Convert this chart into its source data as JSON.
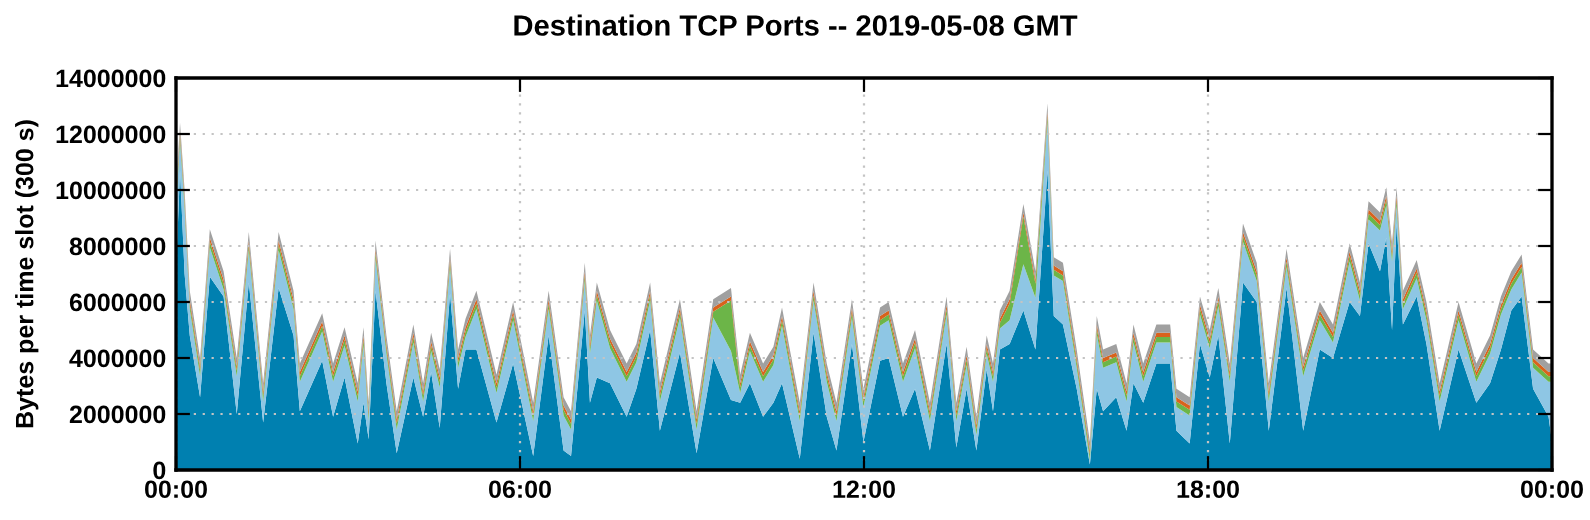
{
  "chart_data": {
    "type": "area",
    "stacked": true,
    "title": "Destination TCP Ports -- 2019-05-08 GMT",
    "ylabel": "Bytes per time slot (300 s)",
    "x": [
      0,
      0.07,
      0.15,
      0.24,
      0.42,
      0.59,
      0.83,
      1.06,
      1.27,
      1.52,
      1.79,
      2.05,
      2.16,
      2.55,
      2.74,
      2.94,
      3.17,
      3.27,
      3.36,
      3.48,
      3.67,
      3.85,
      4.14,
      4.31,
      4.45,
      4.6,
      4.78,
      4.92,
      5.05,
      5.24,
      5.59,
      5.88,
      6.23,
      6.5,
      6.76,
      6.89,
      7.13,
      7.22,
      7.34,
      7.57,
      7.86,
      8.03,
      8.27,
      8.44,
      8.79,
      9.08,
      9.37,
      9.68,
      9.84,
      10.01,
      10.24,
      10.42,
      10.57,
      10.88,
      11.12,
      11.35,
      11.52,
      11.79,
      11.99,
      12.28,
      12.43,
      12.68,
      12.89,
      13.15,
      13.44,
      13.61,
      13.79,
      13.96,
      14.14,
      14.25,
      14.37,
      14.54,
      14.78,
      14.99,
      15.2,
      15.31,
      15.47,
      15.71,
      15.94,
      16.06,
      16.17,
      16.4,
      16.58,
      16.7,
      16.87,
      17.1,
      17.34,
      17.45,
      17.68,
      17.86,
      18.03,
      18.18,
      18.38,
      18.61,
      18.85,
      19.06,
      19.37,
      19.66,
      19.95,
      20.18,
      20.47,
      20.65,
      20.8,
      21.0,
      21.11,
      21.21,
      21.29,
      21.4,
      21.64,
      21.81,
      22.04,
      22.37,
      22.68,
      22.92,
      23.11,
      23.29,
      23.47,
      23.67,
      23.94,
      24
    ],
    "series": [
      {
        "color": "#0080b0",
        "values": [
          7000000.0,
          10700000.0,
          7000000.0,
          4800000.0,
          2600000.0,
          6900000.0,
          6200000.0,
          2000000.0,
          6700000.0,
          1700000.0,
          6500000.0,
          4800000.0,
          2100000.0,
          3900000.0,
          1900000.0,
          3300000.0,
          950000.0,
          2400000.0,
          1100000.0,
          6400000.0,
          3100000.0,
          600000.0,
          3300000.0,
          1900000.0,
          3500000.0,
          1500000.0,
          6300000.0,
          2900000.0,
          4300000.0,
          4300000.0,
          1700000.0,
          3800000.0,
          500000.0,
          4800000.0,
          700000.0,
          500000.0,
          5700000.0,
          2400000.0,
          3300000.0,
          3100000.0,
          1900000.0,
          2900000.0,
          5000000.0,
          1400000.0,
          4200000.0,
          600000.0,
          4000000.0,
          2500000.0,
          2400000.0,
          3100000.0,
          1900000.0,
          2400000.0,
          3100000.0,
          400000.0,
          4900000.0,
          1900000.0,
          700000.0,
          4500000.0,
          1000000.0,
          3900000.0,
          4000000.0,
          1900000.0,
          2900000.0,
          700000.0,
          4500000.0,
          800000.0,
          2900000.0,
          700000.0,
          3600000.0,
          2100000.0,
          4300000.0,
          4500000.0,
          5700000.0,
          4300000.0,
          10700000.0,
          5500000.0,
          5200000.0,
          2900000.0,
          200000.0,
          2900000.0,
          2100000.0,
          2600000.0,
          1400000.0,
          3100000.0,
          2400000.0,
          3800000.0,
          3800000.0,
          1400000.0,
          950000.0,
          4500000.0,
          3300000.0,
          4800000.0,
          950000.0,
          6700000.0,
          6000000.0,
          1400000.0,
          6500000.0,
          1400000.0,
          4300000.0,
          4000000.0,
          6000000.0,
          5500000.0,
          8100000.0,
          7100000.0,
          8300000.0,
          5000000.0,
          8800000.0,
          5200000.0,
          6200000.0,
          4500000.0,
          1400000.0,
          4300000.0,
          2400000.0,
          3100000.0,
          4300000.0,
          5700000.0,
          6200000.0,
          2900000.0,
          1900000.0,
          1000000.0
        ]
      },
      {
        "color": "#8ec6e4",
        "values": [
          2350000.0,
          1050000.0,
          2350000.0,
          950000.0,
          750000.0,
          1050000.0,
          250000.0,
          1350000.0,
          1150000.0,
          750000.0,
          1350000.0,
          950000.0,
          1050000.0,
          1050000.0,
          1250000.0,
          1150000.0,
          1500000.0,
          2050000.0,
          650000.0,
          1150000.0,
          1050000.0,
          850000.0,
          1250000.0,
          550000.0,
          750000.0,
          1450000.0,
          950000.0,
          750000.0,
          450000.0,
          1450000.0,
          1050000.0,
          1550000.0,
          1250000.0,
          950000.0,
          1250000.0,
          950000.0,
          1050000.0,
          1750000.0,
          2750000.0,
          1250000.0,
          1250000.0,
          950000.0,
          1050000.0,
          1050000.0,
          1250000.0,
          850000.0,
          1450000.0,
          1750000.0,
          350000.0,
          1150000.0,
          1250000.0,
          1350000.0,
          2050000.0,
          1350000.0,
          1150000.0,
          1250000.0,
          1050000.0,
          950000.0,
          1250000.0,
          1250000.0,
          1350000.0,
          1250000.0,
          1450000.0,
          1050000.0,
          1050000.0,
          950000.0,
          850000.0,
          550000.0,
          550000.0,
          1050000.0,
          750000.0,
          850000.0,
          1650000.0,
          1850000.0,
          1750000.0,
          1450000.0,
          1550000.0,
          750000.0,
          150000.0,
          1950000.0,
          1550000.0,
          1250000.0,
          1050000.0,
          1450000.0,
          750000.0,
          750000.0,
          750000.0,
          850000.0,
          1000000.0,
          1050000.0,
          1050000.0,
          1050000.0,
          2200000.0,
          1450000.0,
          750000.0,
          1050000.0,
          750000.0,
          1950000.0,
          1050000.0,
          550000.0,
          1450000.0,
          550000.0,
          850000.0,
          1450000.0,
          1150000.0,
          2450000.0,
          650000.0,
          550000.0,
          650000.0,
          850000.0,
          1050000.0,
          1050000.0,
          750000.0,
          1050000.0,
          1250000.0,
          750000.0,
          850000.0,
          750000.0,
          1250000.0,
          2150000.0
        ]
      },
      {
        "color": "#6cb548",
        "values": [
          200000.0,
          200000.0,
          200000.0,
          200000.0,
          200000.0,
          200000.0,
          200000.0,
          200000.0,
          200000.0,
          200000.0,
          200000.0,
          200000.0,
          200000.0,
          200000.0,
          200000.0,
          200000.0,
          200000.0,
          200000.0,
          200000.0,
          200000.0,
          200000.0,
          200000.0,
          200000.0,
          200000.0,
          200000.0,
          200000.0,
          200000.0,
          200000.0,
          200000.0,
          200000.0,
          200000.0,
          200000.0,
          200000.0,
          200000.0,
          200000.0,
          200000.0,
          200000.0,
          200000.0,
          200000.0,
          200000.0,
          200000.0,
          200000.0,
          200000.0,
          200000.0,
          200000.0,
          200000.0,
          200000.0,
          1800000.0,
          200000.0,
          200000.0,
          200000.0,
          200000.0,
          200000.0,
          200000.0,
          200000.0,
          200000.0,
          200000.0,
          200000.0,
          200000.0,
          200000.0,
          200000.0,
          200000.0,
          200000.0,
          200000.0,
          200000.0,
          200000.0,
          200000.0,
          200000.0,
          200000.0,
          200000.0,
          200000.0,
          600000.0,
          1700000.0,
          500000.0,
          200000.0,
          200000.0,
          200000.0,
          200000.0,
          200000.0,
          200000.0,
          200000.0,
          200000.0,
          200000.0,
          200000.0,
          200000.0,
          200000.0,
          200000.0,
          200000.0,
          200000.0,
          200000.0,
          200000.0,
          200000.0,
          200000.0,
          200000.0,
          200000.0,
          200000.0,
          200000.0,
          200000.0,
          200000.0,
          200000.0,
          200000.0,
          200000.0,
          200000.0,
          200000.0,
          200000.0,
          200000.0,
          200000.0,
          200000.0,
          200000.0,
          200000.0,
          200000.0,
          200000.0,
          200000.0,
          200000.0,
          200000.0,
          200000.0,
          200000.0,
          200000.0,
          200000.0,
          200000.0
        ]
      },
      {
        "color": "#d9621c",
        "values": [
          150000.0,
          150000.0,
          150000.0,
          150000.0,
          150000.0,
          150000.0,
          150000.0,
          150000.0,
          150000.0,
          150000.0,
          150000.0,
          150000.0,
          150000.0,
          150000.0,
          150000.0,
          150000.0,
          150000.0,
          150000.0,
          150000.0,
          150000.0,
          150000.0,
          150000.0,
          150000.0,
          150000.0,
          150000.0,
          150000.0,
          150000.0,
          150000.0,
          150000.0,
          150000.0,
          150000.0,
          150000.0,
          150000.0,
          150000.0,
          150000.0,
          150000.0,
          150000.0,
          150000.0,
          150000.0,
          150000.0,
          150000.0,
          150000.0,
          150000.0,
          150000.0,
          150000.0,
          150000.0,
          150000.0,
          150000.0,
          150000.0,
          150000.0,
          150000.0,
          150000.0,
          150000.0,
          150000.0,
          150000.0,
          150000.0,
          150000.0,
          150000.0,
          150000.0,
          150000.0,
          150000.0,
          150000.0,
          150000.0,
          150000.0,
          150000.0,
          150000.0,
          150000.0,
          150000.0,
          150000.0,
          150000.0,
          150000.0,
          150000.0,
          150000.0,
          150000.0,
          150000.0,
          150000.0,
          150000.0,
          150000.0,
          150000.0,
          150000.0,
          150000.0,
          150000.0,
          150000.0,
          150000.0,
          150000.0,
          150000.0,
          150000.0,
          150000.0,
          150000.0,
          150000.0,
          150000.0,
          150000.0,
          150000.0,
          150000.0,
          150000.0,
          150000.0,
          150000.0,
          150000.0,
          150000.0,
          150000.0,
          150000.0,
          150000.0,
          150000.0,
          150000.0,
          150000.0,
          150000.0,
          150000.0,
          150000.0,
          150000.0,
          150000.0,
          150000.0,
          150000.0,
          150000.0,
          150000.0,
          150000.0,
          150000.0,
          150000.0,
          150000.0,
          150000.0,
          150000.0
        ]
      },
      {
        "color": "#a0a0a0",
        "values": [
          300000.0,
          300000.0,
          300000.0,
          300000.0,
          300000.0,
          300000.0,
          300000.0,
          300000.0,
          300000.0,
          300000.0,
          300000.0,
          300000.0,
          300000.0,
          300000.0,
          300000.0,
          300000.0,
          300000.0,
          300000.0,
          300000.0,
          300000.0,
          300000.0,
          300000.0,
          300000.0,
          300000.0,
          300000.0,
          300000.0,
          300000.0,
          300000.0,
          300000.0,
          300000.0,
          300000.0,
          300000.0,
          300000.0,
          300000.0,
          300000.0,
          300000.0,
          300000.0,
          300000.0,
          300000.0,
          300000.0,
          300000.0,
          300000.0,
          300000.0,
          300000.0,
          300000.0,
          300000.0,
          300000.0,
          300000.0,
          300000.0,
          300000.0,
          300000.0,
          300000.0,
          300000.0,
          300000.0,
          300000.0,
          300000.0,
          300000.0,
          300000.0,
          300000.0,
          300000.0,
          300000.0,
          300000.0,
          300000.0,
          300000.0,
          300000.0,
          300000.0,
          300000.0,
          300000.0,
          300000.0,
          300000.0,
          300000.0,
          300000.0,
          300000.0,
          300000.0,
          300000.0,
          300000.0,
          300000.0,
          300000.0,
          300000.0,
          300000.0,
          300000.0,
          300000.0,
          300000.0,
          300000.0,
          300000.0,
          300000.0,
          300000.0,
          300000.0,
          300000.0,
          300000.0,
          300000.0,
          300000.0,
          300000.0,
          300000.0,
          300000.0,
          300000.0,
          300000.0,
          300000.0,
          300000.0,
          300000.0,
          300000.0,
          300000.0,
          300000.0,
          300000.0,
          300000.0,
          300000.0,
          300000.0,
          300000.0,
          300000.0,
          300000.0,
          300000.0,
          300000.0,
          300000.0,
          300000.0,
          300000.0,
          300000.0,
          300000.0,
          300000.0,
          300000.0,
          300000.0
        ]
      }
    ],
    "xlim": [
      0,
      24
    ],
    "xticks": [
      {
        "value": 0,
        "label": "00:00"
      },
      {
        "value": 6,
        "label": "06:00"
      },
      {
        "value": 12,
        "label": "12:00"
      },
      {
        "value": 18,
        "label": "18:00"
      },
      {
        "value": 24,
        "label": "00:00"
      }
    ],
    "ylim": [
      0,
      14000000
    ],
    "yticks": [
      0,
      2000000,
      4000000,
      6000000,
      8000000,
      10000000,
      12000000,
      14000000
    ],
    "grid": true
  }
}
